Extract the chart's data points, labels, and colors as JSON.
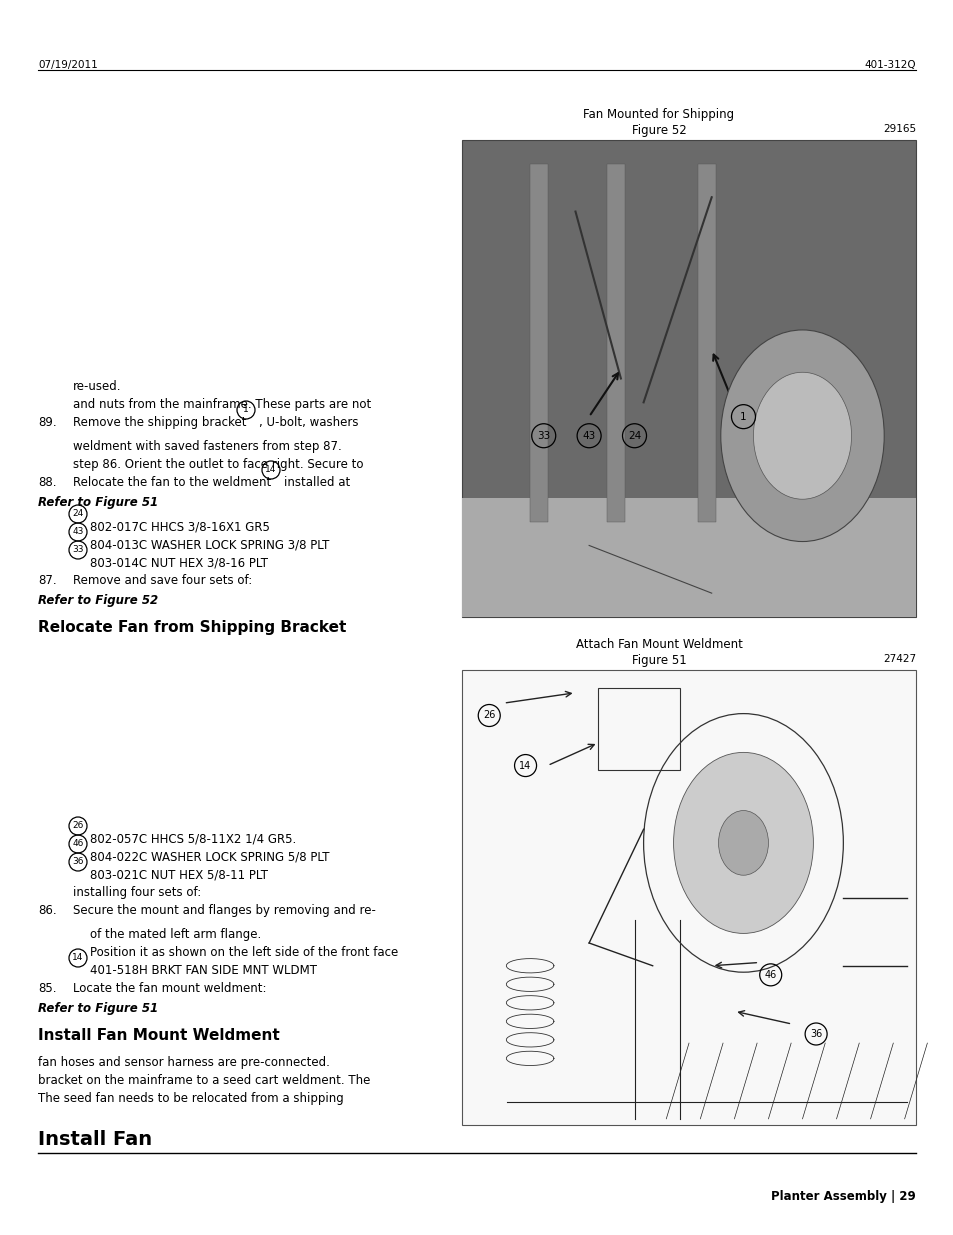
{
  "page_header_right": "Planter Assembly | 29",
  "footer_left": "07/19/2011",
  "footer_right": "401-312Q",
  "section1_title": "Install Fan",
  "section1_body1": "The seed fan needs to be relocated from a shipping",
  "section1_body2": "bracket on the mainframe to a seed cart weldment. The",
  "section1_body3": "fan hoses and sensor harness are pre-connected.",
  "section2_title": "Install Fan Mount Weldment",
  "refer51a": "Refer to Figure 51",
  "step85_num": "85.",
  "step85_text": "Locate the fan mount weldment:",
  "step85_sub1_num": "14",
  "step85_sub1_line1": "401-518H BRKT FAN SIDE MNT WLDMT",
  "step85_sub1_line2": "Position it as shown on the left side of the front face",
  "step85_sub1_line3": "of the mated left arm flange.",
  "step86_num": "86.",
  "step86_line1": "Secure the mount and flanges by removing and re-",
  "step86_line2": "installing four sets of:",
  "step86_sub1_num": "36",
  "step86_sub1_text": "803-021C NUT HEX 5/8-11 PLT",
  "step86_sub2_num": "46",
  "step86_sub2_text": "804-022C WASHER LOCK SPRING 5/8 PLT",
  "step86_sub3_num": "26",
  "step86_sub3_text": "802-057C HHCS 5/8-11X2 1/4 GR5.",
  "fig51_caption": "Figure 51",
  "fig51_num": "27427",
  "fig51_subcaption": "Attach Fan Mount Weldment",
  "section3_title": "Relocate Fan from Shipping Bracket",
  "refer52": "Refer to Figure 52",
  "step87_num": "87.",
  "step87_text": "Remove and save four sets of:",
  "step87_sub1_num": "33",
  "step87_sub1_text": "803-014C NUT HEX 3/8-16 PLT",
  "step87_sub2_num": "43",
  "step87_sub2_text": "804-013C WASHER LOCK SPRING 3/8 PLT",
  "step87_sub3_num": "24",
  "step87_sub3_text": "802-017C HHCS 3/8-16X1 GR5",
  "refer51b": "Refer to Figure 51",
  "step88_num": "88.",
  "step88_line1": "Relocate the fan to the weldment",
  "step88_inline_num": "14",
  "step88_line1b": "installed at",
  "step88_line2": "step 86. Orient the outlet to face right. Secure to",
  "step88_line3": "weldment with saved fasteners from step 87.",
  "step89_num": "89.",
  "step89_line1a": "Remove the shipping bracket",
  "step89_inline_num": "1",
  "step89_line1b": ", U-bolt, washers",
  "step89_line2": "and nuts from the mainframe. These parts are not",
  "step89_line3": "re-used.",
  "fig52_caption": "Figure 52",
  "fig52_num": "29165",
  "fig52_subcaption": "Fan Mounted for Shipping",
  "bg_color": "#ffffff",
  "text_color": "#000000",
  "fig_border_color": "#444444",
  "fig51_bg": "#f0f0f0",
  "fig52_bg": "#888888"
}
